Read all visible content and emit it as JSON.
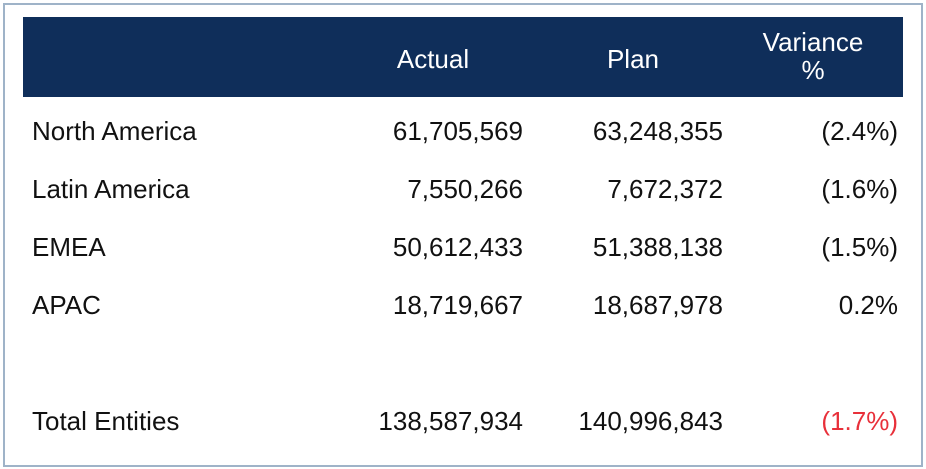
{
  "table": {
    "headers": {
      "region": "",
      "actual": "Actual",
      "plan": "Plan",
      "variance_line1": "Variance",
      "variance_line2": "%"
    },
    "rows": [
      {
        "region": "North America",
        "actual": "61,705,569",
        "plan": "63,248,355",
        "variance": "(2.4%)"
      },
      {
        "region": "Latin America",
        "actual": "7,550,266",
        "plan": "7,672,372",
        "variance": "(1.6%)"
      },
      {
        "region": "EMEA",
        "actual": "50,612,433",
        "plan": "51,388,138",
        "variance": "(1.5%)"
      },
      {
        "region": "APAC",
        "actual": "18,719,667",
        "plan": "18,687,978",
        "variance": "0.2%"
      }
    ],
    "total": {
      "region": "Total Entities",
      "actual": "138,587,934",
      "plan": "140,996,843",
      "variance": "(1.7%)"
    }
  },
  "colors": {
    "header_bg": "#0f2e5a",
    "header_text": "#ffffff",
    "negative_total": "#e8303a",
    "border": "#9fb3c8"
  }
}
